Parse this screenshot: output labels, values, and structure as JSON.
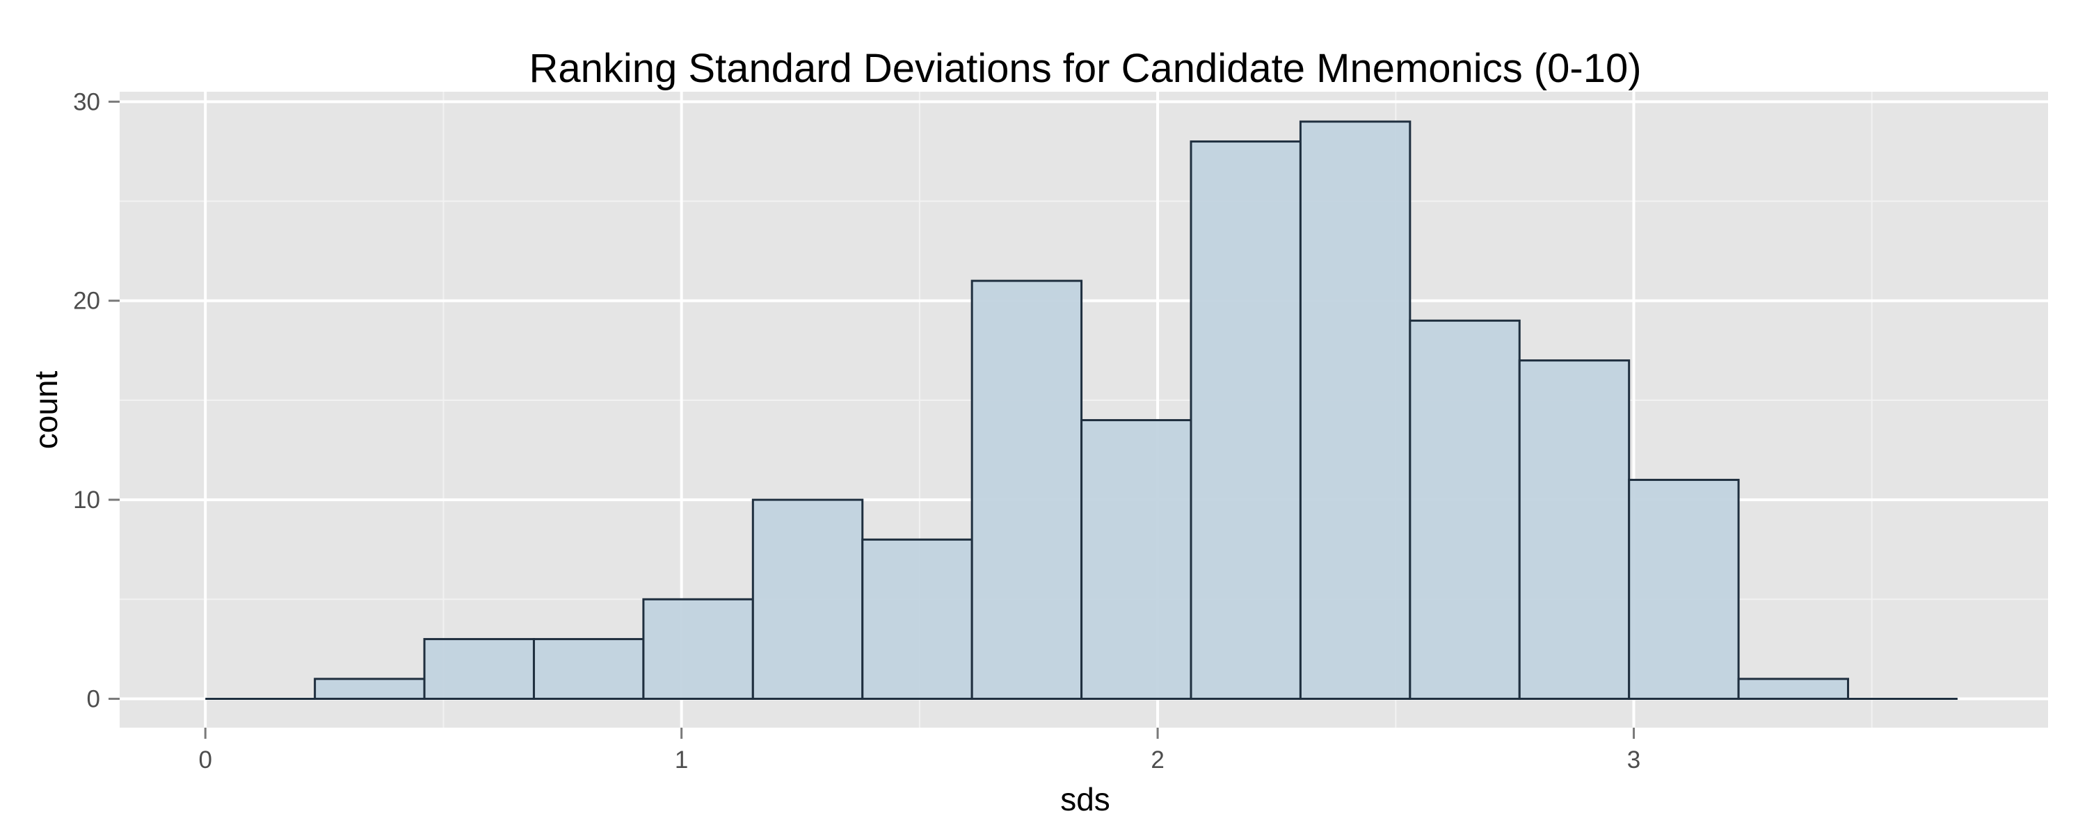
{
  "chart_data": {
    "type": "bar",
    "subtype": "histogram",
    "title": "Ranking Standard Deviations for Candidate Mnemonics (0-10)",
    "xlabel": "sds",
    "ylabel": "count",
    "xlim": [
      -0.18,
      3.87
    ],
    "ylim": [
      -1.45,
      30.5
    ],
    "x_ticks": [
      0,
      1,
      2,
      3
    ],
    "y_ticks": [
      0,
      10,
      20,
      30
    ],
    "x_minor_ticks": [
      0.5,
      1.5,
      2.5,
      3.5
    ],
    "y_minor_ticks": [
      5,
      15,
      25
    ],
    "bins": [
      {
        "x_start": 0.0,
        "x_end": 0.23,
        "count": 0
      },
      {
        "x_start": 0.23,
        "x_end": 0.46,
        "count": 1
      },
      {
        "x_start": 0.46,
        "x_end": 0.69,
        "count": 3
      },
      {
        "x_start": 0.69,
        "x_end": 0.92,
        "count": 3
      },
      {
        "x_start": 0.92,
        "x_end": 1.15,
        "count": 5
      },
      {
        "x_start": 1.15,
        "x_end": 1.38,
        "count": 10
      },
      {
        "x_start": 1.38,
        "x_end": 1.61,
        "count": 8
      },
      {
        "x_start": 1.61,
        "x_end": 1.84,
        "count": 21
      },
      {
        "x_start": 1.84,
        "x_end": 2.07,
        "count": 14
      },
      {
        "x_start": 2.07,
        "x_end": 2.3,
        "count": 28
      },
      {
        "x_start": 2.3,
        "x_end": 2.53,
        "count": 29
      },
      {
        "x_start": 2.53,
        "x_end": 2.76,
        "count": 19
      },
      {
        "x_start": 2.76,
        "x_end": 2.99,
        "count": 17
      },
      {
        "x_start": 2.99,
        "x_end": 3.22,
        "count": 11
      },
      {
        "x_start": 3.22,
        "x_end": 3.45,
        "count": 1
      },
      {
        "x_start": 3.45,
        "x_end": 3.68,
        "count": 0
      }
    ],
    "grid": true,
    "legend": "none",
    "colors": {
      "panel_background": "#e5e5e5",
      "major_grid": "#ffffff",
      "minor_grid": "#f2f2f2",
      "bar_fill": "#c0d2df",
      "bar_outline": "#1f2f3f",
      "tick_text": "#4d4d4d"
    }
  }
}
